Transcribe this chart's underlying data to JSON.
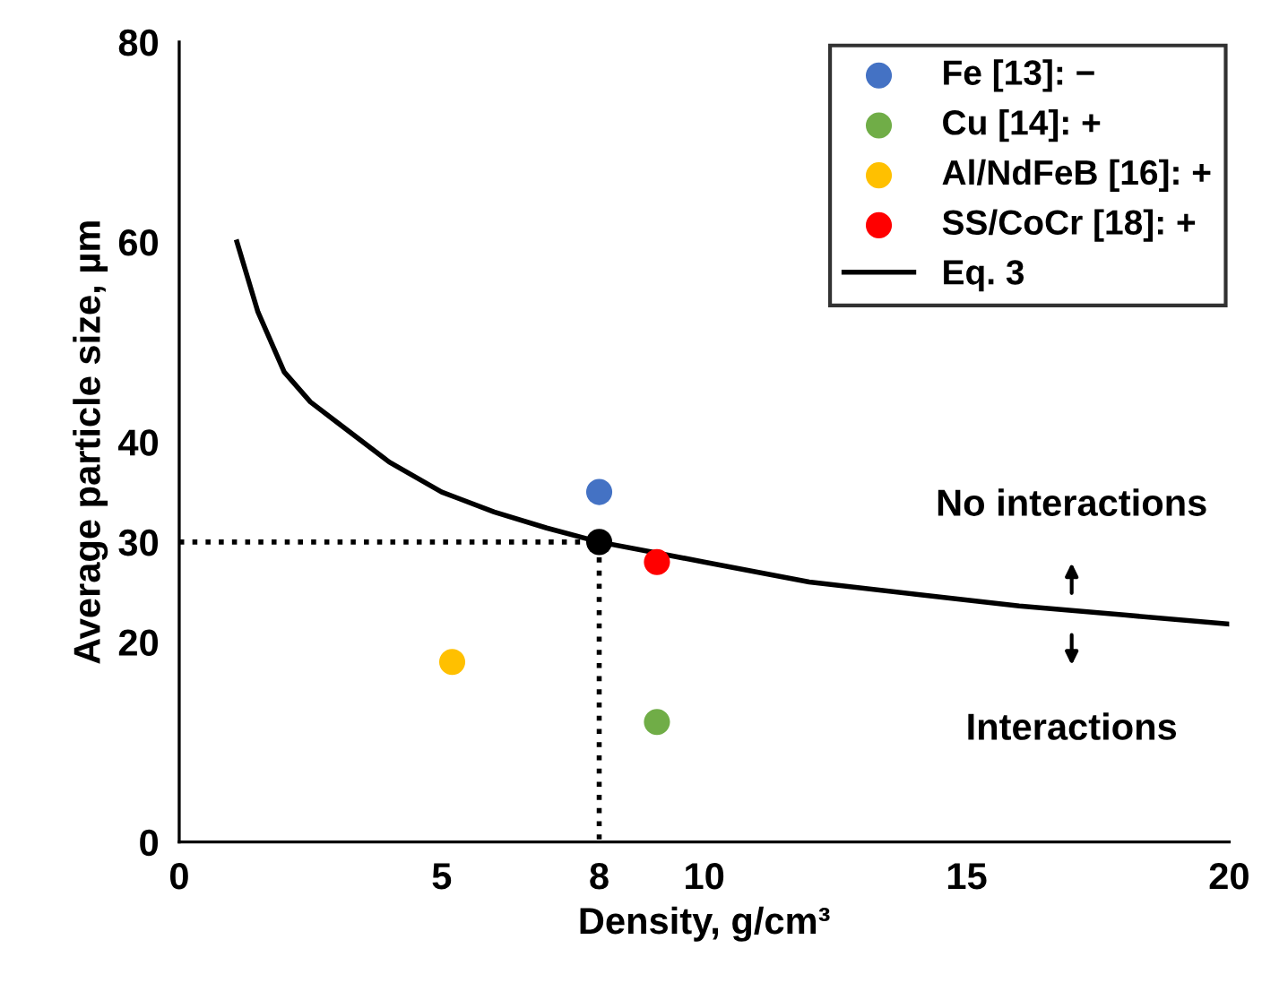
{
  "chart_data": {
    "type": "scatter",
    "xlabel": "Density, g/cm³",
    "ylabel": "Average particle size, µm",
    "xlim": [
      0,
      20
    ],
    "xticks": [
      0,
      5,
      8,
      10,
      15,
      20
    ],
    "ylim": [
      0,
      80
    ],
    "yticks": [
      0,
      20,
      30,
      40,
      60,
      80
    ],
    "grid": false,
    "legend": "top right",
    "series": [
      {
        "name": "Fe [13]: −",
        "marker": "circle",
        "color": "#4472c4",
        "x": [
          8.0
        ],
        "values": [
          35
        ]
      },
      {
        "name": "Cu [14]: +",
        "marker": "circle",
        "color": "#70ad47",
        "x": [
          9.1
        ],
        "values": [
          12
        ]
      },
      {
        "name": "Al/NdFeB [16]: +",
        "marker": "circle",
        "color": "#ffc000",
        "x": [
          5.2
        ],
        "values": [
          18
        ]
      },
      {
        "name": "SS/CoCr [18]: +",
        "marker": "circle",
        "color": "#ff0000",
        "x": [
          9.1
        ],
        "values": [
          28
        ]
      },
      {
        "name": "Eq. 3",
        "type": "line",
        "marker": "none",
        "color": "#000000",
        "line_style": "solid",
        "x": [
          1.1,
          1.5,
          2,
          2.5,
          3,
          4,
          5,
          6,
          7,
          8,
          9,
          10,
          12,
          14,
          16,
          18,
          20
        ],
        "values": [
          60,
          53,
          47,
          44,
          42,
          38,
          35,
          33,
          31.4,
          30,
          29,
          28,
          26,
          24.8,
          23.6,
          22.7,
          21.8
        ]
      },
      {
        "type": "line",
        "marker": "none",
        "color": "#000000",
        "line_style": "dotted",
        "x": [
          0,
          8,
          8
        ],
        "values": [
          30,
          30,
          0
        ]
      },
      {
        "marker": "circle",
        "color": "#000000",
        "x": [
          8
        ],
        "values": [
          30
        ]
      }
    ],
    "annotations": [
      "No interactions",
      "Interactions"
    ]
  }
}
